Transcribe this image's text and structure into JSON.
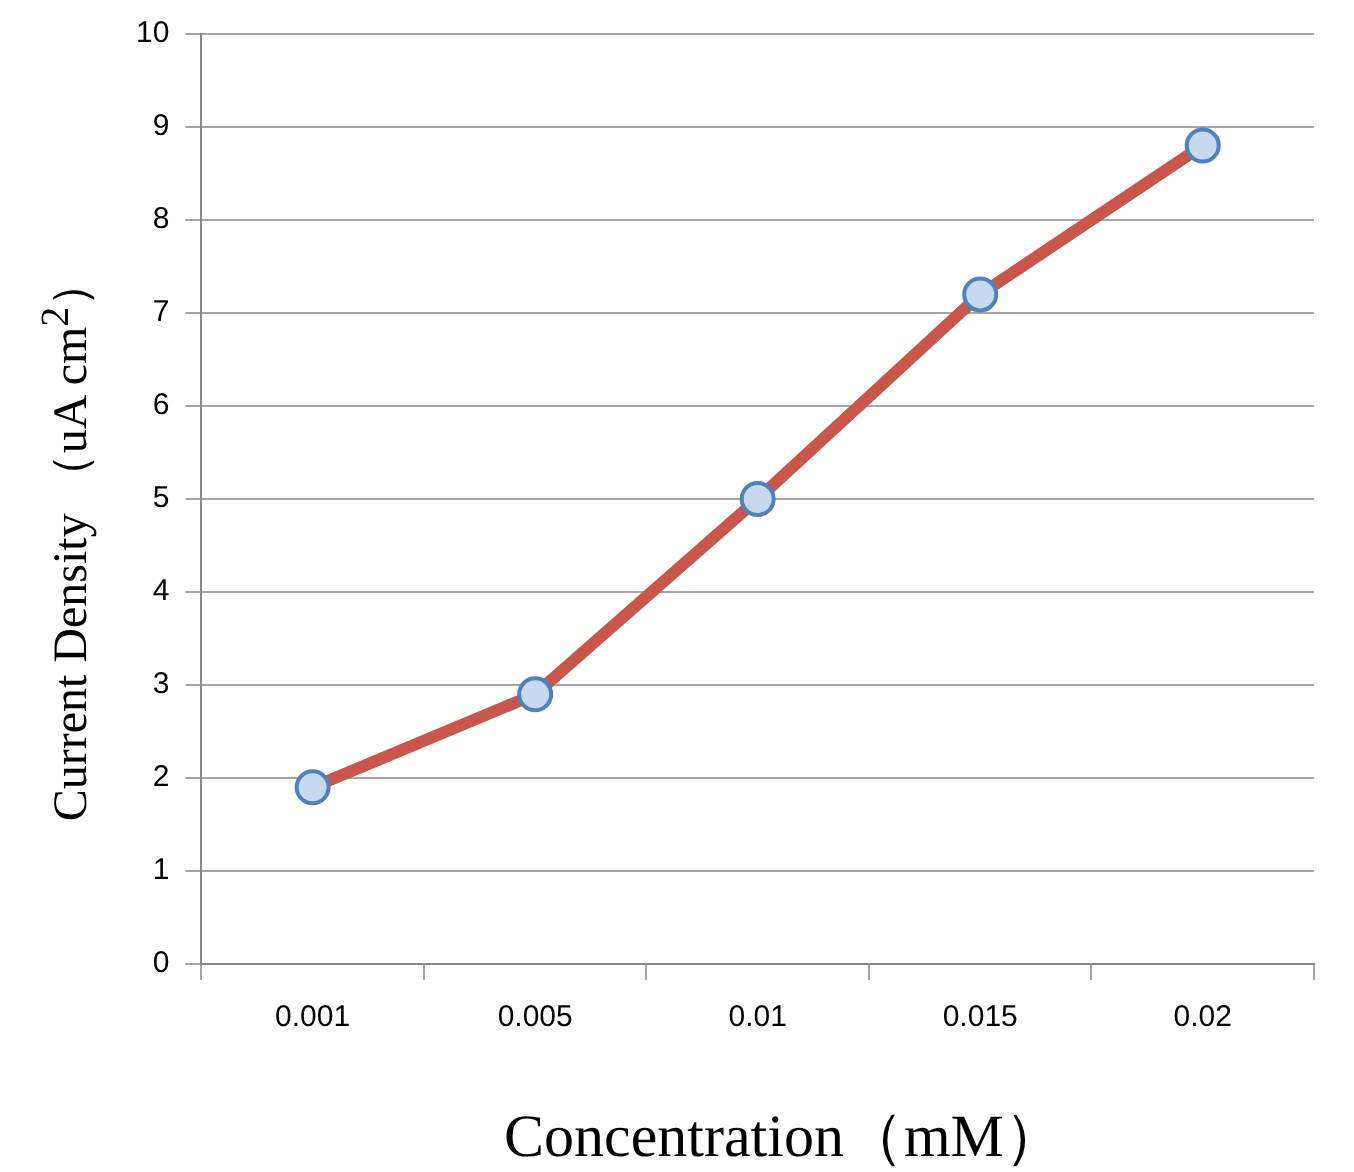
{
  "chart_data": {
    "type": "line",
    "xlabel": "Concentration（mM）",
    "ylabel": "Current Density （uA cm$^{2}$）",
    "categories": [
      "0.001",
      "0.005",
      "0.01",
      "0.015",
      "0.02"
    ],
    "series": [
      {
        "color": "#c9564b",
        "values": [
          1.9,
          2.9,
          5.0,
          7.2,
          8.8
        ]
      }
    ],
    "ylim": [
      0,
      10
    ],
    "yticks": [
      0,
      1,
      2,
      3,
      4,
      5,
      6,
      7,
      8,
      9,
      10
    ],
    "grid": "y",
    "legend": false,
    "marker": "circle",
    "line_style": "solid"
  }
}
